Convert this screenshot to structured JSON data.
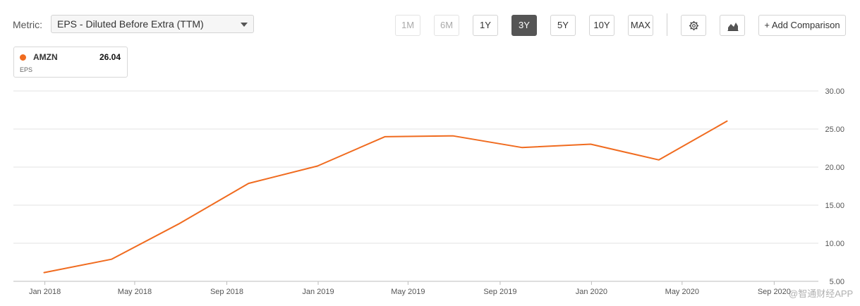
{
  "toolbar": {
    "metric_label": "Metric:",
    "metric_value": "EPS - Diluted Before Extra (TTM)",
    "ranges": [
      {
        "label": "1M",
        "state": "disabled"
      },
      {
        "label": "6M",
        "state": "disabled"
      },
      {
        "label": "1Y",
        "state": "normal"
      },
      {
        "label": "3Y",
        "state": "active"
      },
      {
        "label": "5Y",
        "state": "normal"
      },
      {
        "label": "10Y",
        "state": "normal"
      },
      {
        "label": "MAX",
        "state": "normal"
      }
    ],
    "settings_icon": "gear-icon",
    "chart_type_icon": "area-chart-icon",
    "add_comparison_label": "+ Add Comparison"
  },
  "legend": {
    "ticker": "AMZN",
    "value": "26.04",
    "sublabel": "EPS",
    "color": "#f06b1f"
  },
  "watermark": "@智通财经APP",
  "chart_data": {
    "type": "line",
    "title": "",
    "xlabel": "",
    "ylabel": "",
    "x_ticks": [
      "Jan 2018",
      "May 2018",
      "Sep 2018",
      "Jan 2019",
      "May 2019",
      "Sep 2019",
      "Jan 2020",
      "May 2020",
      "Sep 2020"
    ],
    "y_ticks": [
      "5.00",
      "10.00",
      "15.00",
      "20.00",
      "25.00",
      "30.00"
    ],
    "ylim": [
      5,
      30
    ],
    "xlim": [
      "2017-11-20",
      "2020-10-30"
    ],
    "grid": true,
    "series": [
      {
        "name": "AMZN",
        "color": "#f06b1f",
        "points": [
          {
            "x": "2017-12-31",
            "y": 6.15
          },
          {
            "x": "2018-03-31",
            "y": 7.9
          },
          {
            "x": "2018-06-30",
            "y": 12.6
          },
          {
            "x": "2018-09-30",
            "y": 17.86
          },
          {
            "x": "2018-12-31",
            "y": 20.14
          },
          {
            "x": "2019-03-31",
            "y": 23.99
          },
          {
            "x": "2019-06-30",
            "y": 24.1
          },
          {
            "x": "2019-09-30",
            "y": 22.57
          },
          {
            "x": "2019-12-31",
            "y": 23.01
          },
          {
            "x": "2020-03-31",
            "y": 20.94
          },
          {
            "x": "2020-06-30",
            "y": 26.04
          }
        ]
      }
    ]
  }
}
